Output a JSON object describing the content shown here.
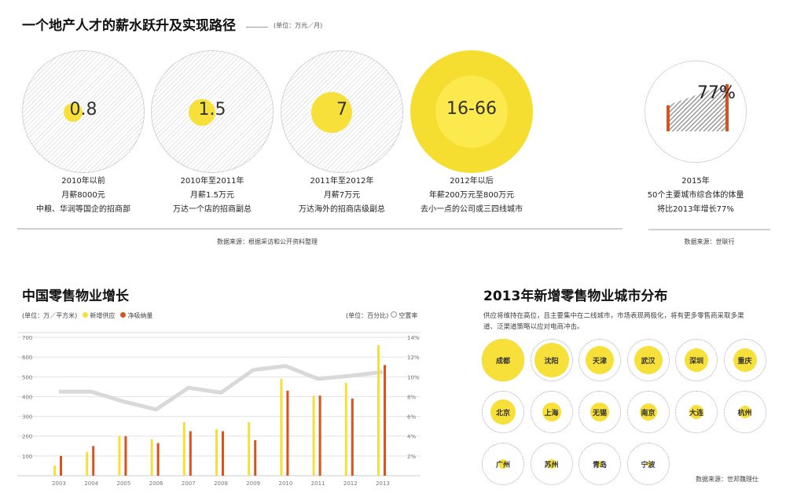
{
  "salary": {
    "title": "一个地产人才的薪水跃升及实现路径",
    "unit": "(单位：万元／月)",
    "items": [
      {
        "value": "0.8",
        "period": "2010年以前",
        "pay": "月薪8000元",
        "role": "中粮、华润等国企的招商部"
      },
      {
        "value": "1.5",
        "period": "2010年至2011年",
        "pay": "月薪1.5万元",
        "role": "万达一个店的招商副总"
      },
      {
        "value": "7",
        "period": "2011年至2012年",
        "pay": "月薪7万元",
        "role": "万达海外的招商店级副总"
      },
      {
        "value": "16-66",
        "period": "2012年以后",
        "pay": "年薪200万元至800万元",
        "role": "去小一点的公司或三四线城市"
      }
    ],
    "source": "数据来源：根据采访和公开资料整理"
  },
  "forecast": {
    "value": "77%",
    "year": "2015年",
    "line1": "50个主要城市综合体的体量",
    "line2": "将比2013年增长77%",
    "source": "数据来源：世联行"
  },
  "retail": {
    "title": "中国零售物业增长",
    "left_unit": "(单位：万／平方米)",
    "right_unit": "(单位：百分比)",
    "legend_supply": "新增供应",
    "legend_absorb": "净吸纳量",
    "legend_vacancy": "空置率"
  },
  "colors": {
    "supply": "#f5df3a",
    "absorb": "#d9531e",
    "vacancy": "#d9d9d9",
    "city": "#f7e03a"
  },
  "chart_data": {
    "type": "bar",
    "categories": [
      "2003",
      "2004",
      "2005",
      "2006",
      "2007",
      "2008",
      "2009",
      "2010",
      "2011",
      "2012",
      "2013"
    ],
    "series": [
      {
        "name": "新增供应",
        "type": "bar",
        "axis": "left",
        "values": [
          50,
          120,
          200,
          185,
          270,
          235,
          270,
          490,
          405,
          470,
          660
        ]
      },
      {
        "name": "净吸纳量",
        "type": "bar",
        "axis": "left",
        "values": [
          100,
          150,
          200,
          165,
          225,
          225,
          180,
          430,
          405,
          390,
          560
        ]
      },
      {
        "name": "空置率",
        "type": "line",
        "axis": "right",
        "values": [
          8.5,
          8.5,
          7.5,
          6.7,
          8.9,
          8.4,
          10.7,
          11.1,
          9.8,
          10.1,
          10.5
        ]
      }
    ],
    "ylim": [
      0,
      700
    ],
    "yticks": [
      "100",
      "200",
      "300",
      "400",
      "500",
      "600",
      "700"
    ],
    "y2lim": [
      0,
      14
    ],
    "y2ticks": [
      "2%",
      "4%",
      "6%",
      "8%",
      "10%",
      "12%",
      "14%"
    ],
    "grid": true
  },
  "cities": {
    "title": "2013年新增零售物业城市分布",
    "desc1": "供应将维持在高位，且主要集中在二线城市，市场表现两极化，将有更多零售商采取多渠",
    "desc2": "道、泛渠道策略以应对电商冲击。",
    "names": [
      "成都",
      "沈阳",
      "天津",
      "武汉",
      "深圳",
      "重庆",
      "北京",
      "上海",
      "无锡",
      "南京",
      "大连",
      "杭州",
      "广州",
      "苏州",
      "青岛",
      "宁波"
    ],
    "source": "数据来源：世邦魏理仕"
  }
}
